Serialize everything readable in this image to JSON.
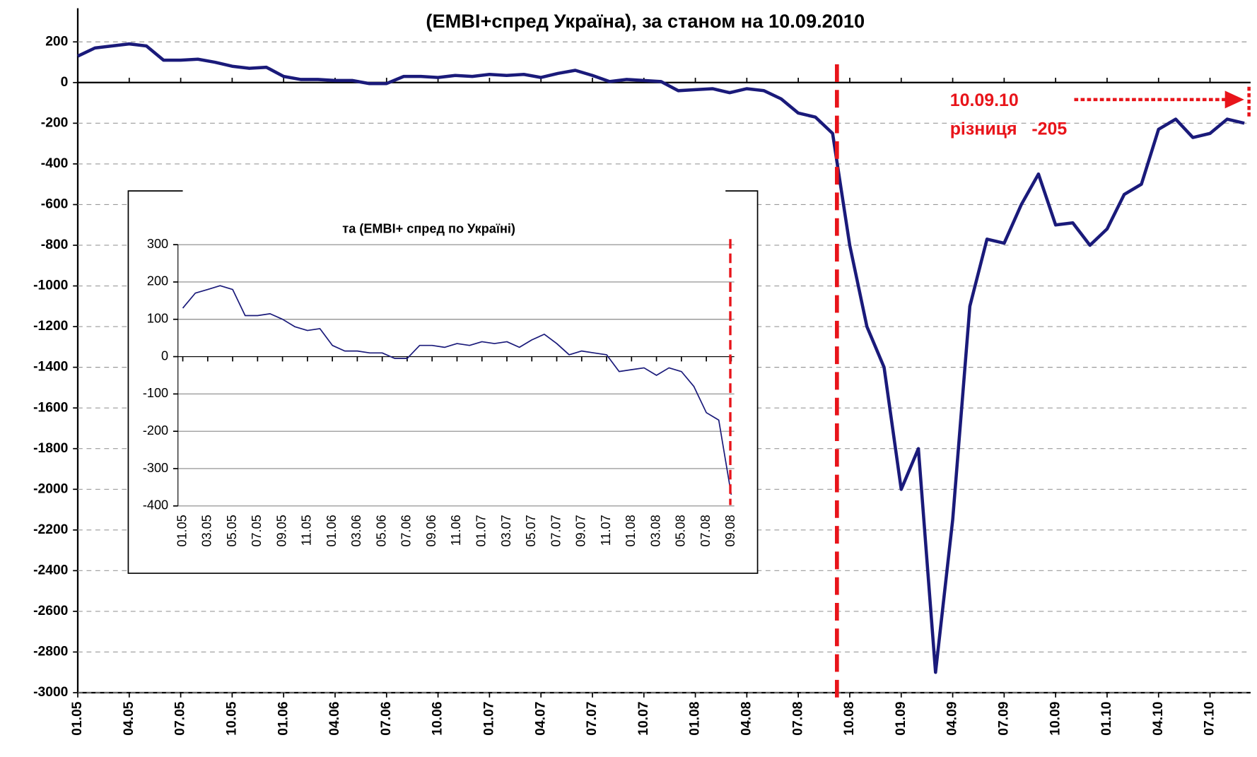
{
  "chart_data": [
    {
      "type": "line",
      "title": "(EMBI+спред Україна), за станом на 10.09.2010",
      "annotations": [
        "10.09.10",
        "різниця   -205"
      ],
      "categories": [
        "01.05",
        null,
        null,
        "04.05",
        null,
        null,
        "07.05",
        null,
        null,
        "10.05",
        null,
        null,
        "01.06",
        null,
        null,
        "04.06",
        null,
        null,
        "07.06",
        null,
        null,
        "10.06",
        null,
        null,
        "01.07",
        null,
        null,
        "04.07",
        null,
        null,
        "07.07",
        null,
        null,
        "10.07",
        null,
        null,
        "01.08",
        null,
        null,
        "04.08",
        null,
        null,
        "07.08",
        null,
        null,
        "10.08",
        null,
        null,
        "01.09",
        null,
        null,
        "04.09",
        null,
        null,
        "07.09",
        null,
        null,
        "10.09",
        null,
        null,
        "01.10",
        null,
        null,
        "04.10",
        null,
        null,
        "07.10",
        null,
        null
      ],
      "values": [
        130,
        170,
        180,
        190,
        180,
        110,
        110,
        115,
        100,
        80,
        70,
        75,
        30,
        15,
        15,
        10,
        10,
        -5,
        -5,
        30,
        30,
        25,
        35,
        30,
        40,
        35,
        40,
        25,
        45,
        60,
        35,
        5,
        15,
        10,
        5,
        -40,
        -35,
        -30,
        -50,
        -30,
        -40,
        -80,
        -150,
        -170,
        -250,
        -800,
        -1200,
        -1400,
        -2000,
        -1800,
        -2900,
        -2150,
        -1100,
        -770,
        -790,
        -600,
        -450,
        -700,
        -690,
        -800,
        -720,
        -550,
        -500,
        -230,
        -180,
        -270,
        -250,
        -180,
        -200
      ],
      "color": "#1a1a7a",
      "ylim": [
        -3000,
        200
      ],
      "yticks": [
        200,
        0,
        -200,
        -400,
        -600,
        -800,
        -1000,
        -1200,
        -1400,
        -1600,
        -1800,
        -2000,
        -2200,
        -2400,
        -2600,
        -2800,
        -3000
      ],
      "grid": true
    },
    {
      "type": "line",
      "title": "та (EMBI+ спред по Україні)",
      "categories": [
        "01.05",
        null,
        "03.05",
        null,
        "05.05",
        null,
        "07.05",
        null,
        "09.05",
        null,
        "11.05",
        null,
        "01.06",
        null,
        "03.06",
        null,
        "05.06",
        null,
        "07.06",
        null,
        "09.06",
        null,
        "11.06",
        null,
        "01.07",
        null,
        "03.07",
        null,
        "05.07",
        null,
        "07.07",
        null,
        "09.07",
        null,
        "11.07",
        null,
        "01.08",
        null,
        "03.08",
        null,
        "05.08",
        null,
        "07.08",
        null,
        "09.08"
      ],
      "values": [
        130,
        170,
        180,
        190,
        180,
        110,
        110,
        115,
        100,
        80,
        70,
        75,
        30,
        15,
        15,
        10,
        10,
        -5,
        -5,
        30,
        30,
        25,
        35,
        30,
        40,
        35,
        40,
        25,
        45,
        60,
        35,
        5,
        15,
        10,
        5,
        -40,
        -35,
        -30,
        -50,
        -30,
        -40,
        -80,
        -150,
        -170,
        -370
      ],
      "color": "#1a1a7a",
      "ylim": [
        -400,
        300
      ],
      "yticks": [
        300,
        200,
        100,
        0,
        -100,
        -200,
        -300,
        -400
      ],
      "grid": true
    }
  ]
}
